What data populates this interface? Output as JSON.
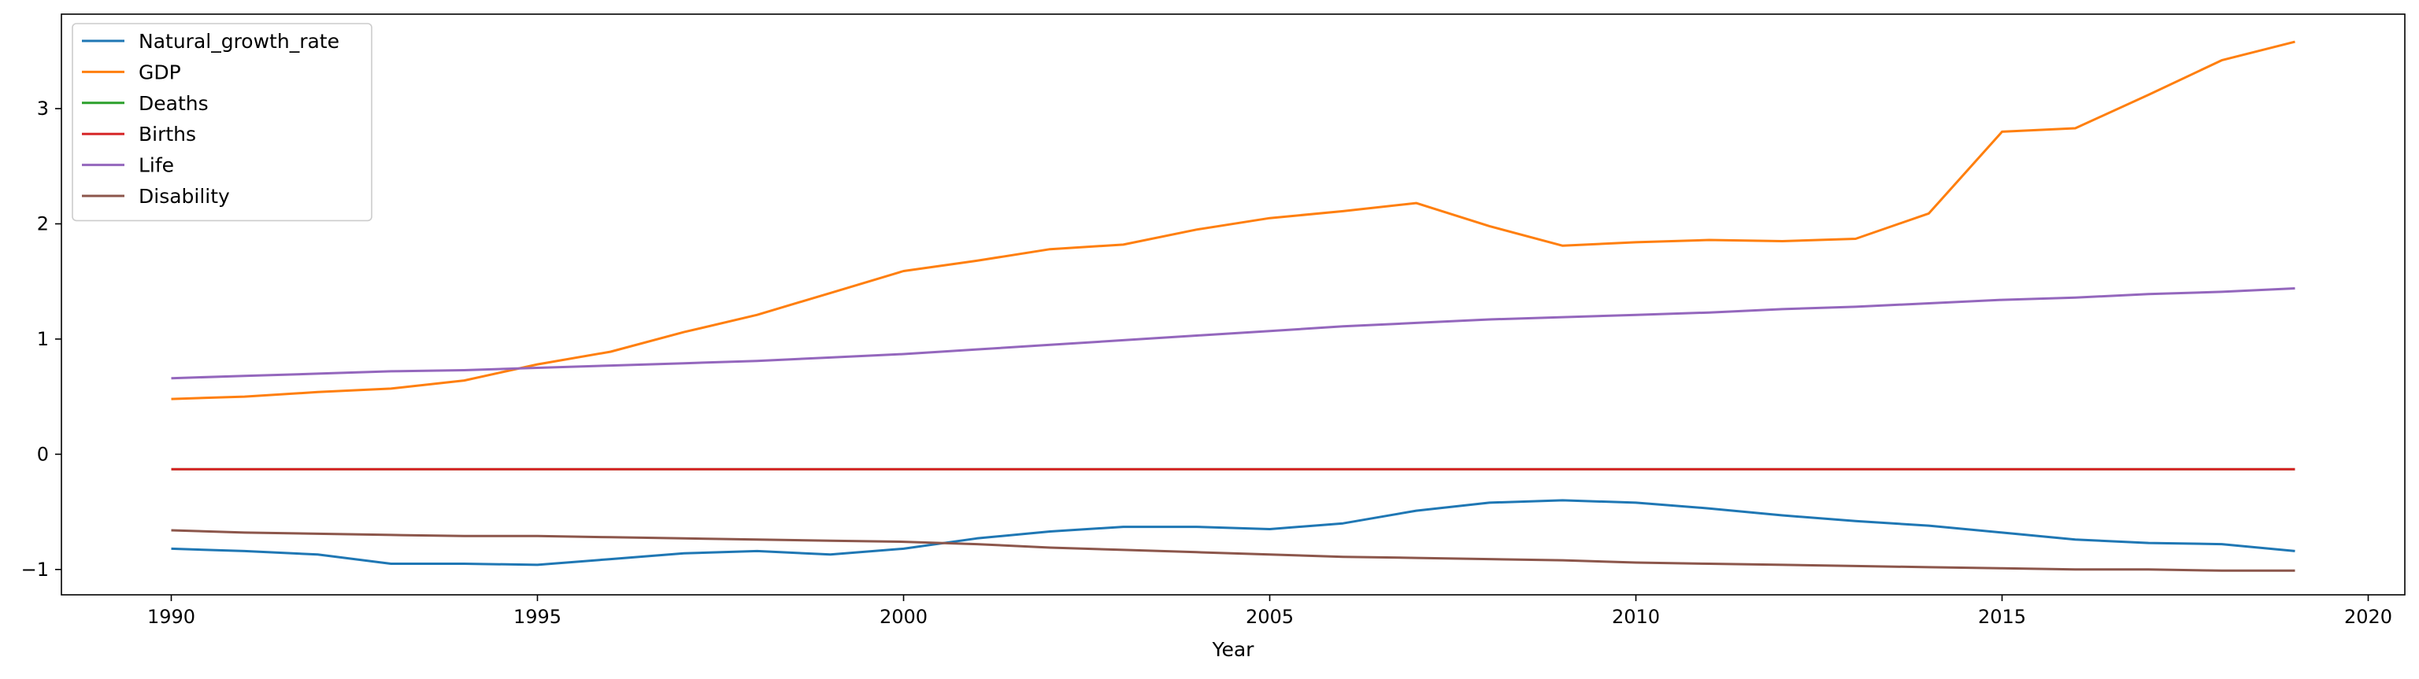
{
  "chart_data": {
    "type": "line",
    "title": "",
    "xlabel": "Year",
    "ylabel": "",
    "xlim": [
      1988.5,
      2020.5
    ],
    "ylim": [
      -1.22,
      3.82
    ],
    "x_ticks": [
      1990,
      1995,
      2000,
      2005,
      2010,
      2015,
      2020
    ],
    "y_ticks": [
      -1,
      0,
      1,
      2,
      3
    ],
    "x_tick_labels": [
      "1990",
      "1995",
      "2000",
      "2005",
      "2010",
      "2015",
      "2020"
    ],
    "y_tick_labels": [
      "−1",
      "0",
      "1",
      "2",
      "3"
    ],
    "grid": false,
    "legend_position": "top-left",
    "x": [
      1990,
      1991,
      1992,
      1993,
      1994,
      1995,
      1996,
      1997,
      1998,
      1999,
      2000,
      2001,
      2002,
      2003,
      2004,
      2005,
      2006,
      2007,
      2008,
      2009,
      2010,
      2011,
      2012,
      2013,
      2014,
      2015,
      2016,
      2017,
      2018,
      2019
    ],
    "series": [
      {
        "name": "Natural_growth_rate",
        "color": "#1f77b4",
        "values": [
          -0.82,
          -0.84,
          -0.87,
          -0.95,
          -0.95,
          -0.96,
          -0.91,
          -0.86,
          -0.84,
          -0.87,
          -0.82,
          -0.73,
          -0.67,
          -0.63,
          -0.63,
          -0.65,
          -0.6,
          -0.49,
          -0.42,
          -0.4,
          -0.42,
          -0.47,
          -0.53,
          -0.58,
          -0.62,
          -0.68,
          -0.74,
          -0.77,
          -0.78,
          -0.84
        ]
      },
      {
        "name": "GDP",
        "color": "#ff7f0e",
        "values": [
          0.48,
          0.5,
          0.54,
          0.57,
          0.64,
          0.78,
          0.89,
          1.06,
          1.21,
          1.4,
          1.59,
          1.68,
          1.78,
          1.82,
          1.95,
          2.05,
          2.11,
          2.18,
          1.98,
          1.81,
          1.84,
          1.86,
          1.85,
          1.87,
          2.09,
          2.8,
          2.83,
          3.12,
          3.42,
          3.58
        ]
      },
      {
        "name": "Deaths",
        "color": "#2ca02c",
        "values": [
          -0.13,
          -0.13,
          -0.13,
          -0.13,
          -0.13,
          -0.13,
          -0.13,
          -0.13,
          -0.13,
          -0.13,
          -0.13,
          -0.13,
          -0.13,
          -0.13,
          -0.13,
          -0.13,
          -0.13,
          -0.13,
          -0.13,
          -0.13,
          -0.13,
          -0.13,
          -0.13,
          -0.13,
          -0.13,
          -0.13,
          -0.13,
          -0.13,
          -0.13,
          -0.13
        ]
      },
      {
        "name": "Births",
        "color": "#d62728",
        "values": [
          -0.13,
          -0.13,
          -0.13,
          -0.13,
          -0.13,
          -0.13,
          -0.13,
          -0.13,
          -0.13,
          -0.13,
          -0.13,
          -0.13,
          -0.13,
          -0.13,
          -0.13,
          -0.13,
          -0.13,
          -0.13,
          -0.13,
          -0.13,
          -0.13,
          -0.13,
          -0.13,
          -0.13,
          -0.13,
          -0.13,
          -0.13,
          -0.13,
          -0.13,
          -0.13
        ]
      },
      {
        "name": "Life",
        "color": "#9467bd",
        "values": [
          0.66,
          0.68,
          0.7,
          0.72,
          0.73,
          0.75,
          0.77,
          0.79,
          0.81,
          0.84,
          0.87,
          0.91,
          0.95,
          0.99,
          1.03,
          1.07,
          1.11,
          1.14,
          1.17,
          1.19,
          1.21,
          1.23,
          1.26,
          1.28,
          1.31,
          1.34,
          1.36,
          1.39,
          1.41,
          1.44
        ]
      },
      {
        "name": "Disability",
        "color": "#8c564b",
        "values": [
          -0.66,
          -0.68,
          -0.69,
          -0.7,
          -0.71,
          -0.71,
          -0.72,
          -0.73,
          -0.74,
          -0.75,
          -0.76,
          -0.78,
          -0.81,
          -0.83,
          -0.85,
          -0.87,
          -0.89,
          -0.9,
          -0.91,
          -0.92,
          -0.94,
          -0.95,
          -0.96,
          -0.97,
          -0.98,
          -0.99,
          -1.0,
          -1.0,
          -1.01,
          -1.01
        ]
      }
    ]
  }
}
